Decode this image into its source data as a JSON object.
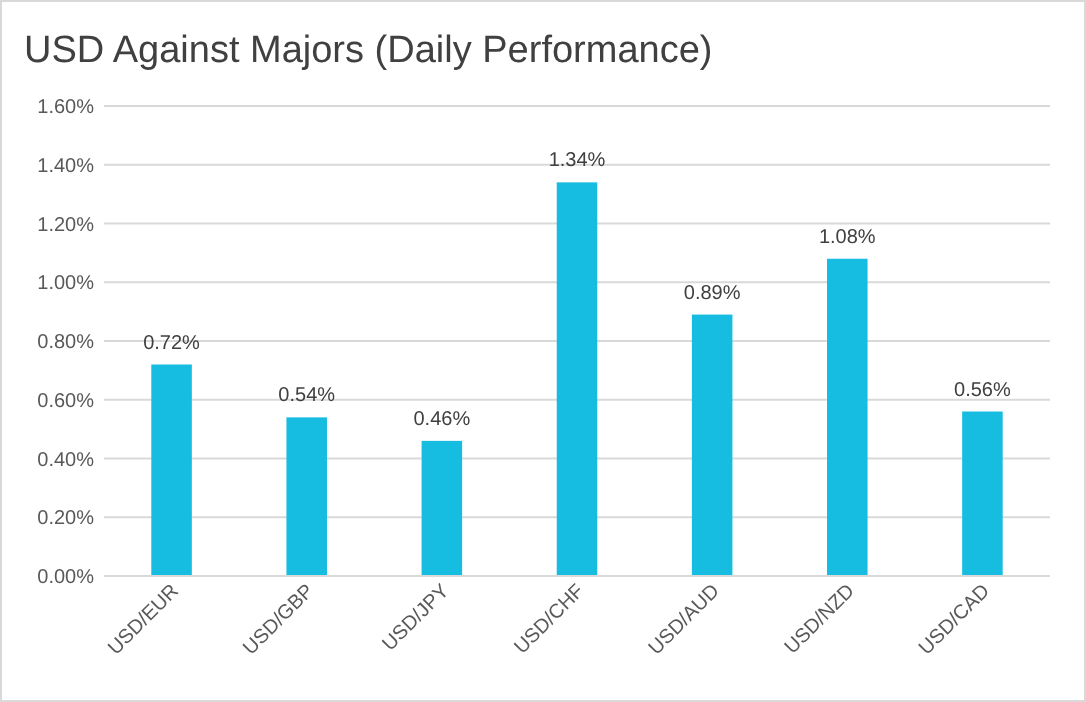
{
  "chart_data": {
    "type": "bar",
    "title": "USD Against Majors (Daily Performance)",
    "categories": [
      "USD/EUR",
      "USD/GBP",
      "USD/JPY",
      "USD/CHF",
      "USD/AUD",
      "USD/NZD",
      "USD/CAD"
    ],
    "values": [
      0.72,
      0.54,
      0.46,
      1.34,
      0.89,
      1.08,
      0.56
    ],
    "value_labels": [
      "0.72%",
      "0.54%",
      "0.46%",
      "1.34%",
      "0.89%",
      "1.08%",
      "0.56%"
    ],
    "color": "#17bde0",
    "ylim": [
      0,
      1.6
    ],
    "yticks": [
      {
        "value": 0,
        "label": "0.00%"
      },
      {
        "value": 0.2,
        "label": "0.20%"
      },
      {
        "value": 0.4,
        "label": "0.40%"
      },
      {
        "value": 0.6,
        "label": "0.60%"
      },
      {
        "value": 0.8,
        "label": "0.80%"
      },
      {
        "value": 1,
        "label": "1.00%"
      },
      {
        "value": 1.2,
        "label": "1.20%"
      },
      {
        "value": 1.4,
        "label": "1.40%"
      },
      {
        "value": 1.6,
        "label": "1.60%"
      }
    ],
    "grid": "y"
  }
}
